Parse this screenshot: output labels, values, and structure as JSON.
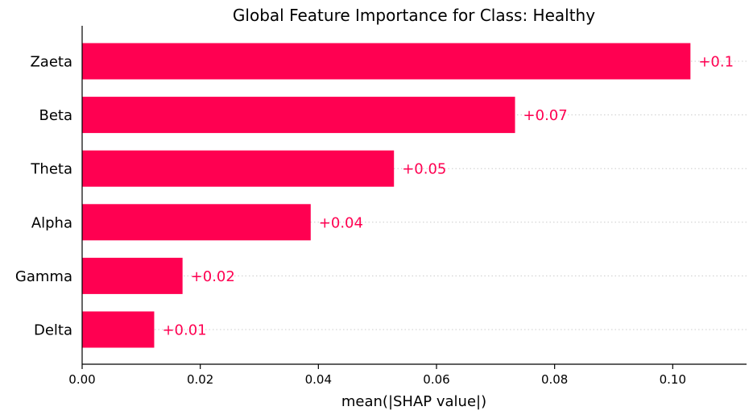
{
  "chart_data": {
    "type": "bar",
    "orientation": "horizontal",
    "title": "Global Feature Importance for Class: Healthy",
    "xlabel": "mean(|SHAP value|)",
    "ylabel": "",
    "categories": [
      "Zaeta",
      "Beta",
      "Theta",
      "Alpha",
      "Gamma",
      "Delta"
    ],
    "values": [
      0.103,
      0.0733,
      0.0528,
      0.0387,
      0.017,
      0.0122
    ],
    "data_labels": [
      "+0.1",
      "+0.07",
      "+0.05",
      "+0.04",
      "+0.02",
      "+0.01"
    ],
    "xlim": [
      0.0,
      0.1125
    ],
    "xticks": [
      0.0,
      0.02,
      0.04,
      0.06,
      0.08,
      0.1
    ],
    "xtick_labels": [
      "0.00",
      "0.02",
      "0.04",
      "0.06",
      "0.08",
      "0.10"
    ],
    "grid": "horizontal dotted row lines",
    "legend": "none",
    "colors": {
      "bar": "#ff0051",
      "data_label": "#ff0051",
      "grid": "#cccccc",
      "axis": "#000000"
    }
  }
}
